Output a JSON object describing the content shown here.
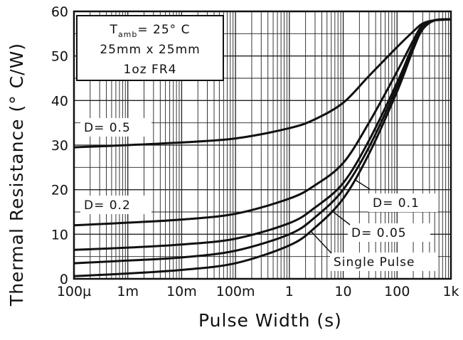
{
  "chart_data": {
    "type": "line",
    "title": "",
    "xlabel": "Pulse Width (s)",
    "ylabel": "Thermal Resistance (° C/W)",
    "xscale": "log",
    "xlim": [
      0.0001,
      1000
    ],
    "ylim": [
      0,
      60
    ],
    "x_tick_labels": [
      "100µ",
      "1m",
      "10m",
      "100m",
      "1",
      "10",
      "100",
      "1k"
    ],
    "y_tick_labels": [
      "0",
      "10",
      "20",
      "30",
      "40",
      "50",
      "60"
    ],
    "grid": true,
    "conditions": {
      "line1_prefix": "T",
      "line1_sub": "amb",
      "line1_suffix": "= 25° C",
      "line2": "25mm x 25mm",
      "line3": "1oz FR4"
    },
    "series": [
      {
        "name": "D= 0.5",
        "x": [
          0.0001,
          0.001,
          0.01,
          0.1,
          1,
          3,
          10,
          30,
          100,
          200,
          300,
          500,
          1000
        ],
        "y": [
          29.5,
          30.0,
          30.6,
          31.5,
          33.8,
          35.8,
          39.5,
          45.5,
          52.0,
          55.5,
          57.3,
          58.0,
          58.2
        ]
      },
      {
        "name": "D= 0.2",
        "x": [
          0.0001,
          0.001,
          0.01,
          0.1,
          1,
          3,
          10,
          30,
          100,
          200,
          300,
          500,
          1000
        ],
        "y": [
          12.0,
          12.6,
          13.3,
          14.6,
          18.0,
          21.0,
          26.0,
          35.0,
          46.5,
          53.5,
          57.0,
          58.0,
          58.2
        ]
      },
      {
        "name": "D= 0.1",
        "x": [
          0.0001,
          0.001,
          0.01,
          0.1,
          1,
          3,
          10,
          30,
          100,
          200,
          300,
          500,
          1000
        ],
        "y": [
          6.5,
          7.0,
          7.7,
          9.0,
          12.5,
          16.0,
          21.5,
          31.0,
          44.0,
          52.5,
          56.5,
          58.0,
          58.2
        ]
      },
      {
        "name": "D= 0.05",
        "x": [
          0.0001,
          0.001,
          0.01,
          0.1,
          1,
          3,
          10,
          30,
          100,
          200,
          300,
          500,
          1000
        ],
        "y": [
          3.5,
          4.1,
          4.8,
          6.3,
          10.0,
          13.8,
          20.0,
          29.5,
          43.0,
          52.0,
          56.2,
          58.0,
          58.2
        ]
      },
      {
        "name": "Single Pulse",
        "x": [
          0.0001,
          0.001,
          0.01,
          0.1,
          1,
          3,
          10,
          30,
          100,
          200,
          300,
          500,
          1000
        ],
        "y": [
          0.6,
          1.2,
          2.0,
          3.5,
          7.5,
          11.5,
          18.0,
          28.0,
          42.0,
          51.5,
          56.0,
          58.0,
          58.2
        ]
      }
    ],
    "annotations": [
      "D= 0.5",
      "D= 0.2",
      "D= 0.1",
      "D= 0.05",
      "Single Pulse"
    ]
  }
}
